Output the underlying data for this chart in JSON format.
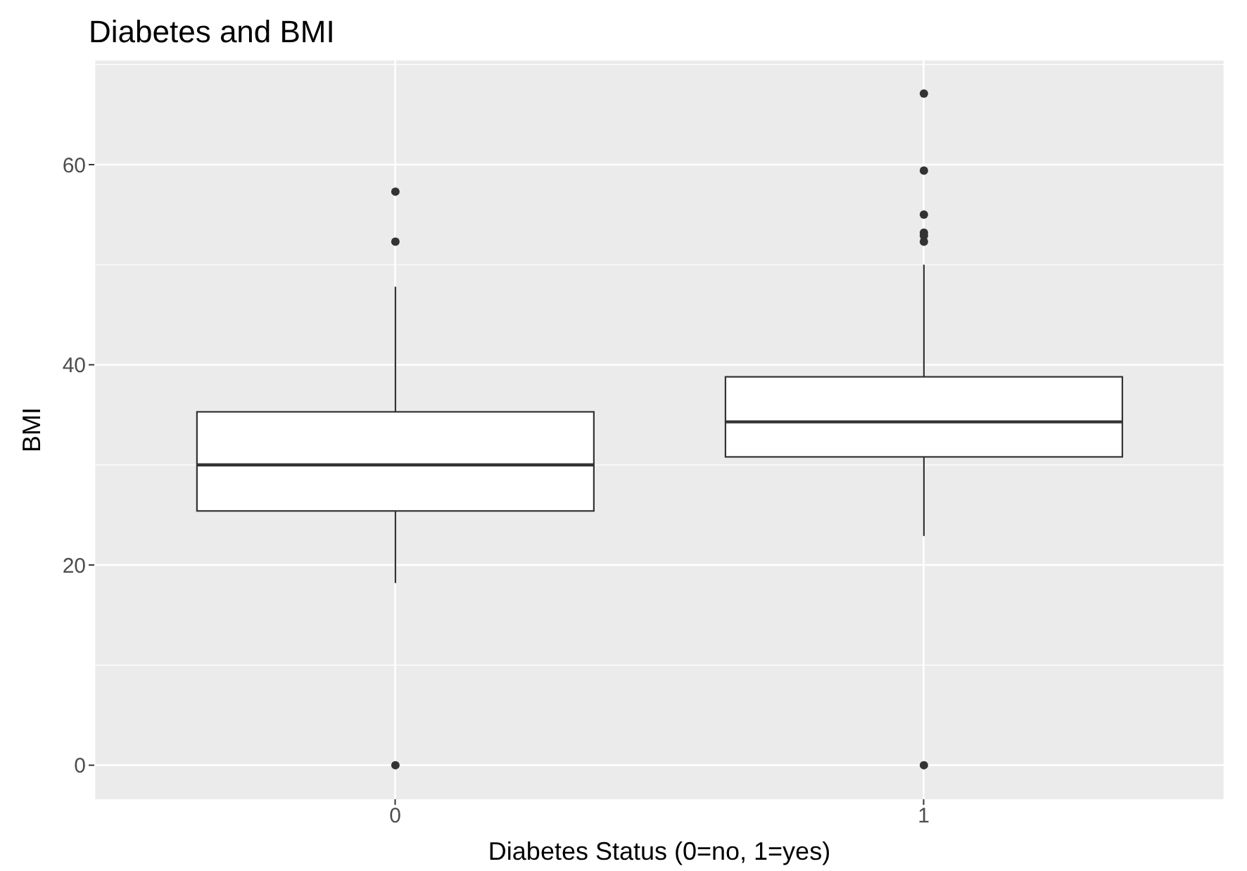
{
  "chart_data": {
    "type": "box",
    "title": "Diabetes and BMI",
    "xlabel": "Diabetes Status (0=no, 1=yes)",
    "ylabel": "BMI",
    "categories": [
      "0",
      "1"
    ],
    "color": "#333333",
    "boxes": [
      {
        "low": 18.2,
        "q1": 25.4,
        "median": 30.0,
        "q3": 35.3,
        "high": 47.8,
        "outliers": [
          57.3,
          52.3,
          0
        ]
      },
      {
        "low": 22.9,
        "q1": 30.8,
        "median": 34.3,
        "q3": 38.8,
        "high": 50.0,
        "outliers": [
          67.1,
          59.4,
          55.0,
          53.2,
          52.9,
          52.3,
          0
        ]
      }
    ],
    "ylim": [
      -3.4,
      70.4
    ],
    "yticks": [
      0,
      20,
      40,
      60
    ],
    "grid": true,
    "legend": false
  }
}
